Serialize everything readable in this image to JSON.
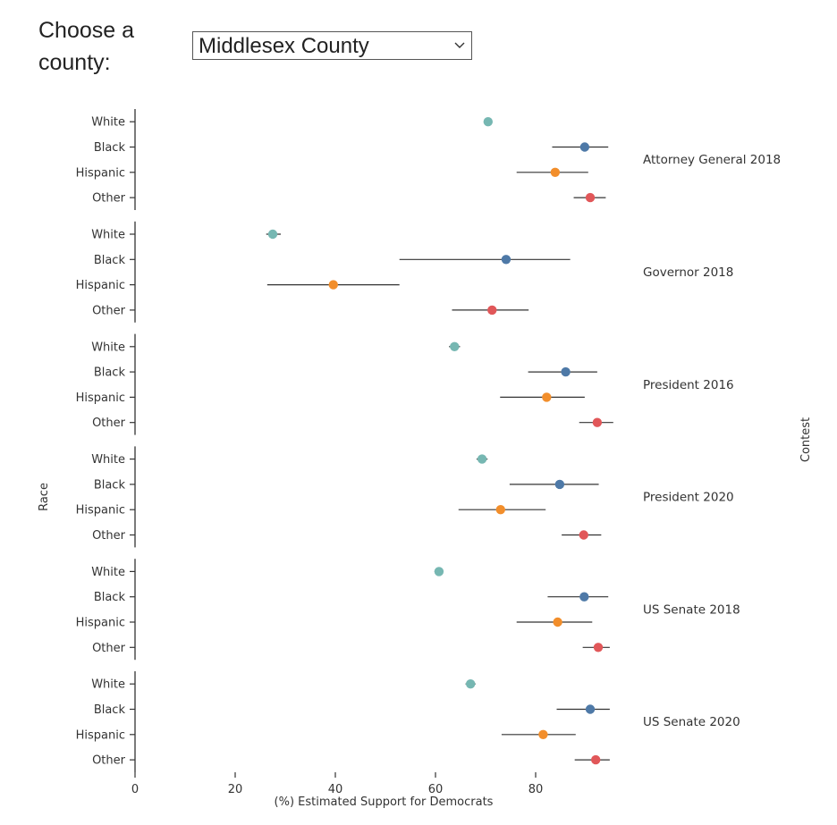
{
  "controls": {
    "prompt_label": "Choose a county:",
    "county_select": {
      "selected": "Middlesex County"
    }
  },
  "chart_data": {
    "type": "scatter",
    "subtype": "dot-with-error-bars",
    "xlabel": "(%) Estimated Support for Democrats",
    "ylabel": "Race",
    "facet_label": "Contest",
    "xlim": [
      0,
      100
    ],
    "x_ticks": [
      0,
      20,
      40,
      60,
      80
    ],
    "races": [
      "White",
      "Black",
      "Hispanic",
      "Other"
    ],
    "colors": {
      "White": "#76b7b2",
      "Black": "#4e79a7",
      "Hispanic": "#f28e2b",
      "Other": "#e15759"
    },
    "contests": [
      {
        "name": "Attorney General 2018",
        "points": [
          {
            "race": "White",
            "value": 70.5,
            "low": 70.5,
            "high": 70.5
          },
          {
            "race": "Black",
            "value": 89.8,
            "low": 83.3,
            "high": 94.5
          },
          {
            "race": "Hispanic",
            "value": 83.9,
            "low": 76.2,
            "high": 90.5
          },
          {
            "race": "Other",
            "value": 90.9,
            "low": 87.6,
            "high": 94.0
          }
        ]
      },
      {
        "name": "Governor 2018",
        "points": [
          {
            "race": "White",
            "value": 27.5,
            "low": 26.2,
            "high": 29.1
          },
          {
            "race": "Black",
            "value": 74.1,
            "low": 52.8,
            "high": 86.9
          },
          {
            "race": "Hispanic",
            "value": 39.6,
            "low": 26.4,
            "high": 52.8
          },
          {
            "race": "Other",
            "value": 71.3,
            "low": 63.3,
            "high": 78.6
          }
        ]
      },
      {
        "name": "President 2016",
        "points": [
          {
            "race": "White",
            "value": 63.8,
            "low": 62.7,
            "high": 64.9
          },
          {
            "race": "Black",
            "value": 86.0,
            "low": 78.5,
            "high": 92.3
          },
          {
            "race": "Hispanic",
            "value": 82.2,
            "low": 72.9,
            "high": 89.8
          },
          {
            "race": "Other",
            "value": 92.3,
            "low": 88.7,
            "high": 95.5
          }
        ]
      },
      {
        "name": "President 2020",
        "points": [
          {
            "race": "White",
            "value": 69.3,
            "low": 68.2,
            "high": 70.4
          },
          {
            "race": "Black",
            "value": 84.8,
            "low": 74.8,
            "high": 92.6
          },
          {
            "race": "Hispanic",
            "value": 73.0,
            "low": 64.6,
            "high": 82.0
          },
          {
            "race": "Other",
            "value": 89.6,
            "low": 85.2,
            "high": 93.1
          }
        ]
      },
      {
        "name": "US Senate 2018",
        "points": [
          {
            "race": "White",
            "value": 60.7,
            "low": 59.8,
            "high": 61.6
          },
          {
            "race": "Black",
            "value": 89.7,
            "low": 82.4,
            "high": 94.5
          },
          {
            "race": "Hispanic",
            "value": 84.4,
            "low": 76.2,
            "high": 91.3
          },
          {
            "race": "Other",
            "value": 92.5,
            "low": 89.4,
            "high": 94.8
          }
        ]
      },
      {
        "name": "US Senate 2020",
        "points": [
          {
            "race": "White",
            "value": 67.0,
            "low": 66.0,
            "high": 68.0
          },
          {
            "race": "Black",
            "value": 90.9,
            "low": 84.2,
            "high": 94.8
          },
          {
            "race": "Hispanic",
            "value": 81.5,
            "low": 73.2,
            "high": 88.0
          },
          {
            "race": "Other",
            "value": 92.0,
            "low": 87.8,
            "high": 94.8
          }
        ]
      }
    ]
  }
}
